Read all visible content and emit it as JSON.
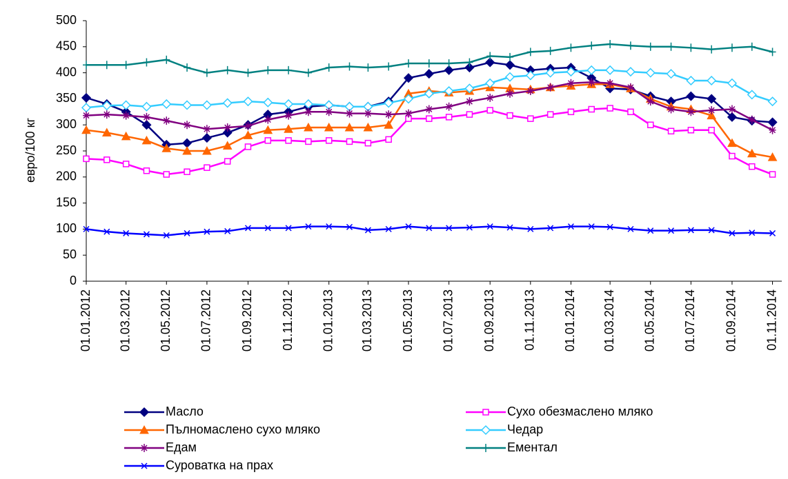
{
  "chart_data": {
    "type": "line",
    "y_label": "евро/100 кг",
    "x": [
      "01.01.2012",
      "01.02.2012",
      "01.03.2012",
      "01.04.2012",
      "01.05.2012",
      "01.06.2012",
      "01.07.2012",
      "01.08.2012",
      "01.09.2012",
      "01.10.2012",
      "01.11.2012",
      "01.12.2012",
      "01.01.2013",
      "01.02.2013",
      "01.03.2013",
      "01.04.2013",
      "01.05.2013",
      "01.06.2013",
      "01.07.2013",
      "01.08.2013",
      "01.09.2013",
      "01.10.2013",
      "01.11.2013",
      "01.12.2013",
      "01.01.2014",
      "01.02.2014",
      "01.03.2014",
      "01.04.2014",
      "01.05.2014",
      "01.06.2014",
      "01.07.2014",
      "01.08.2014",
      "01.09.2014",
      "01.10.2014",
      "01.11.2014"
    ],
    "xlim": [
      "01.01.2012",
      "15.11.2014"
    ],
    "xticks": [
      "01.01.2012",
      "01.03.2012",
      "01.05.2012",
      "01.07.2012",
      "01.09.2012",
      "01.11.2012",
      "01.01.2013",
      "01.03.2013",
      "01.05.2013",
      "01.07.2013",
      "01.09.2013",
      "01.11.2013",
      "01.01.2014",
      "01.03.2014",
      "01.05.2014",
      "01.07.2014",
      "01.09.2014",
      "01.11.2014"
    ],
    "ylim": [
      0,
      500
    ],
    "yticks": [
      0,
      50,
      100,
      150,
      200,
      250,
      300,
      350,
      400,
      450,
      500
    ],
    "grid": false,
    "legend": "bottom",
    "series": [
      {
        "name": "Масло",
        "color": "#000080",
        "marker": "diamond",
        "values": [
          352,
          340,
          325,
          300,
          262,
          265,
          275,
          285,
          300,
          320,
          325,
          335,
          338,
          335,
          335,
          345,
          390,
          398,
          405,
          410,
          420,
          415,
          405,
          408,
          410,
          390,
          370,
          368,
          355,
          345,
          355,
          350,
          315,
          308,
          305
        ]
      },
      {
        "name": "Сухо обезмаслено мляко",
        "color": "#ff00ff",
        "marker": "square-open",
        "values": [
          235,
          233,
          225,
          212,
          205,
          210,
          218,
          230,
          258,
          270,
          270,
          268,
          270,
          268,
          265,
          272,
          312,
          312,
          315,
          320,
          328,
          318,
          312,
          320,
          325,
          330,
          332,
          325,
          300,
          288,
          290,
          290,
          240,
          220,
          205
        ]
      },
      {
        "name": "Пълномаслено сухо мляко",
        "color": "#ff6600",
        "marker": "triangle",
        "values": [
          290,
          285,
          278,
          270,
          255,
          250,
          250,
          260,
          280,
          290,
          292,
          295,
          295,
          295,
          295,
          300,
          360,
          365,
          362,
          365,
          372,
          370,
          368,
          372,
          375,
          378,
          378,
          370,
          350,
          335,
          330,
          318,
          265,
          245,
          238
        ]
      },
      {
        "name": "Чедар",
        "color": "#33ccff",
        "marker": "diamond-open",
        "values": [
          333,
          337,
          338,
          335,
          340,
          338,
          338,
          342,
          345,
          343,
          340,
          340,
          338,
          335,
          335,
          342,
          350,
          360,
          365,
          370,
          380,
          392,
          395,
          400,
          402,
          405,
          405,
          402,
          400,
          398,
          385,
          385,
          380,
          358,
          345
        ]
      },
      {
        "name": "Едам",
        "color": "#800080",
        "marker": "star",
        "values": [
          318,
          320,
          318,
          315,
          308,
          300,
          292,
          295,
          298,
          310,
          318,
          325,
          325,
          322,
          322,
          320,
          322,
          330,
          335,
          345,
          352,
          360,
          365,
          372,
          380,
          382,
          380,
          372,
          345,
          330,
          325,
          328,
          330,
          310,
          290
        ]
      },
      {
        "name": "Ементал",
        "color": "#008080",
        "marker": "plus",
        "values": [
          415,
          415,
          415,
          420,
          425,
          410,
          400,
          405,
          400,
          405,
          405,
          400,
          410,
          412,
          410,
          412,
          418,
          418,
          418,
          420,
          432,
          430,
          440,
          442,
          448,
          452,
          455,
          452,
          450,
          450,
          448,
          445,
          448,
          450,
          440
        ]
      },
      {
        "name": "Суроватка на прах",
        "color": "#0000ff",
        "marker": "cross",
        "values": [
          100,
          95,
          92,
          90,
          88,
          92,
          95,
          96,
          102,
          102,
          102,
          105,
          105,
          104,
          98,
          100,
          105,
          102,
          102,
          103,
          105,
          103,
          100,
          102,
          105,
          105,
          104,
          100,
          97,
          97,
          98,
          98,
          92,
          93,
          92
        ]
      }
    ]
  }
}
